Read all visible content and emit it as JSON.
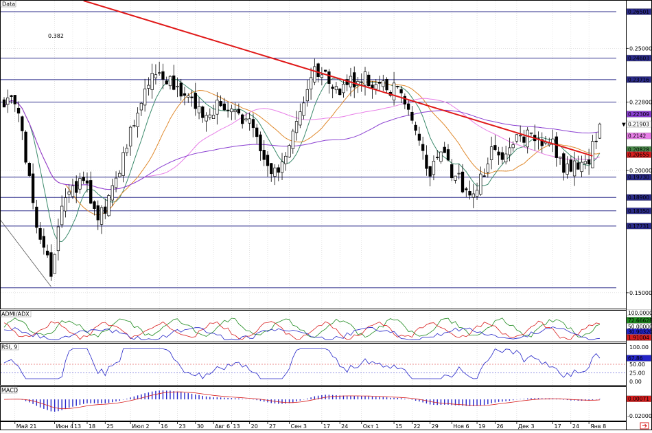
{
  "panes": {
    "main": {
      "label": "Data"
    },
    "adx": {
      "label": "ADMI/ADX"
    },
    "rsi": {
      "label": "RSI, 9"
    },
    "macd": {
      "label": "MACD"
    }
  },
  "chart_data": {
    "type": "candlestick",
    "price_axis": {
      "ylim": [
        0.1435,
        0.2695
      ],
      "ticks": [
        {
          "v": 0.25,
          "t": "0.25000"
        },
        {
          "v": 0.228,
          "t": "0.22800"
        },
        {
          "v": 0.2,
          "t": "0.20000"
        },
        {
          "v": 0.15,
          "t": "0.15000"
        }
      ]
    },
    "fib_label": "0.382",
    "levels": [
      {
        "v": 0.265,
        "t": "0.26501",
        "color": "#2b2b8a"
      },
      {
        "v": 0.246,
        "t": "0.24603",
        "color": "#2b2b8a"
      },
      {
        "v": 0.2372,
        "t": "0.23716",
        "color": "#2b2b8a"
      },
      {
        "v": 0.1973,
        "t": "0.19730",
        "color": "#2b2b8a"
      },
      {
        "v": 0.189,
        "t": "0.18900",
        "color": "#2b2b8a"
      },
      {
        "v": 0.1835,
        "t": "0.18350",
        "color": "#2b2b8a"
      },
      {
        "v": 0.1773,
        "t": "0.17731",
        "color": "#2b2b8a"
      }
    ],
    "line_levels": [
      0.228,
      0.152
    ],
    "price_tags": [
      {
        "v": 0.2231,
        "t": "0.22309",
        "color": "#8a3fd1"
      },
      {
        "v": 0.219,
        "t": "0.21903",
        "color": "#ffffff",
        "text_color": "#000000"
      },
      {
        "v": 0.2142,
        "t": "0.2142",
        "color": "#e87fe8"
      },
      {
        "v": 0.2086,
        "t": "0.20828",
        "color": "#4a8a4a"
      },
      {
        "v": 0.2065,
        "t": "0.20655",
        "color": "#d81e1e"
      }
    ],
    "x_labels": [
      {
        "i": 3,
        "t": "Май 21"
      },
      {
        "i": 14,
        "t": "Июн 4"
      },
      {
        "i": 19,
        "t": "13"
      },
      {
        "i": 23,
        "t": "18"
      },
      {
        "i": 28,
        "t": "25"
      },
      {
        "i": 35,
        "t": "Июл 2"
      },
      {
        "i": 43,
        "t": "16"
      },
      {
        "i": 48,
        "t": "23"
      },
      {
        "i": 53,
        "t": "30"
      },
      {
        "i": 58,
        "t": "Авг 6"
      },
      {
        "i": 63,
        "t": "13"
      },
      {
        "i": 68,
        "t": "20"
      },
      {
        "i": 73,
        "t": "27"
      },
      {
        "i": 79,
        "t": "Сен 3"
      },
      {
        "i": 88,
        "t": "17"
      },
      {
        "i": 93,
        "t": "24"
      },
      {
        "i": 99,
        "t": "Окт 1"
      },
      {
        "i": 108,
        "t": "15"
      },
      {
        "i": 113,
        "t": "22"
      },
      {
        "i": 118,
        "t": "29"
      },
      {
        "i": 124,
        "t": "Ноя 6"
      },
      {
        "i": 131,
        "t": "19"
      },
      {
        "i": 136,
        "t": "26"
      },
      {
        "i": 142,
        "t": "Дек 3"
      },
      {
        "i": 152,
        "t": "17"
      },
      {
        "i": 157,
        "t": "24"
      },
      {
        "i": 162,
        "t": "Янв 8"
      }
    ],
    "close_keypoints": [
      [
        0,
        0.228
      ],
      [
        2,
        0.232
      ],
      [
        4,
        0.222
      ],
      [
        6,
        0.205
      ],
      [
        8,
        0.186
      ],
      [
        10,
        0.172
      ],
      [
        12,
        0.165
      ],
      [
        13,
        0.155
      ],
      [
        14,
        0.168
      ],
      [
        16,
        0.184
      ],
      [
        18,
        0.19
      ],
      [
        20,
        0.192
      ],
      [
        22,
        0.196
      ],
      [
        24,
        0.188
      ],
      [
        26,
        0.18
      ],
      [
        28,
        0.184
      ],
      [
        30,
        0.192
      ],
      [
        32,
        0.2
      ],
      [
        34,
        0.212
      ],
      [
        36,
        0.22
      ],
      [
        38,
        0.227
      ],
      [
        40,
        0.236
      ],
      [
        42,
        0.24
      ],
      [
        44,
        0.238
      ],
      [
        46,
        0.236
      ],
      [
        48,
        0.232
      ],
      [
        50,
        0.23
      ],
      [
        52,
        0.228
      ],
      [
        54,
        0.224
      ],
      [
        56,
        0.222
      ],
      [
        58,
        0.224
      ],
      [
        60,
        0.229
      ],
      [
        62,
        0.226
      ],
      [
        64,
        0.224
      ],
      [
        66,
        0.222
      ],
      [
        68,
        0.22
      ],
      [
        70,
        0.212
      ],
      [
        72,
        0.205
      ],
      [
        74,
        0.198
      ],
      [
        76,
        0.2
      ],
      [
        78,
        0.204
      ],
      [
        80,
        0.214
      ],
      [
        82,
        0.226
      ],
      [
        84,
        0.235
      ],
      [
        86,
        0.24
      ],
      [
        88,
        0.242
      ],
      [
        90,
        0.238
      ],
      [
        92,
        0.232
      ],
      [
        94,
        0.234
      ],
      [
        96,
        0.236
      ],
      [
        98,
        0.238
      ],
      [
        100,
        0.24
      ],
      [
        102,
        0.234
      ],
      [
        104,
        0.236
      ],
      [
        106,
        0.233
      ],
      [
        108,
        0.234
      ],
      [
        110,
        0.232
      ],
      [
        112,
        0.226
      ],
      [
        114,
        0.216
      ],
      [
        116,
        0.206
      ],
      [
        118,
        0.198
      ],
      [
        120,
        0.204
      ],
      [
        122,
        0.206
      ],
      [
        124,
        0.2
      ],
      [
        126,
        0.196
      ],
      [
        128,
        0.192
      ],
      [
        130,
        0.19
      ],
      [
        132,
        0.196
      ],
      [
        134,
        0.204
      ],
      [
        136,
        0.21
      ],
      [
        138,
        0.206
      ],
      [
        140,
        0.21
      ],
      [
        142,
        0.212
      ],
      [
        144,
        0.214
      ],
      [
        146,
        0.215
      ],
      [
        148,
        0.214
      ],
      [
        150,
        0.212
      ],
      [
        152,
        0.21
      ],
      [
        154,
        0.203
      ],
      [
        156,
        0.201
      ],
      [
        158,
        0.204
      ],
      [
        160,
        0.203
      ],
      [
        162,
        0.205
      ],
      [
        164,
        0.213
      ],
      [
        165,
        0.219
      ]
    ],
    "trendline": {
      "from": [
        22,
        0.2695
      ],
      "to": [
        163,
        0.206
      ],
      "color": "#e01818"
    },
    "wedge_line": {
      "from": [
        0,
        0.18
      ],
      "to": [
        13,
        0.1525
      ],
      "color": "#555555"
    },
    "indicators": {
      "adx": {
        "ylim": [
          0,
          100
        ],
        "tags": [
          {
            "v": 100,
            "t": "100.0000",
            "color": "#ffffff"
          },
          {
            "v": 72.67,
            "t": "72.66628",
            "color": "#1e8a1e"
          },
          {
            "v": 50,
            "t": "50.00000",
            "color": "#ffffff"
          },
          {
            "v": 30.9,
            "t": "30.90320",
            "color": "#2424c8"
          },
          {
            "v": 10,
            "t": "1.91004",
            "color": "#d81e1e"
          }
        ]
      },
      "rsi": {
        "ylim": [
          0,
          100
        ],
        "ticks": [
          {
            "v": 100,
            "t": "100.00"
          },
          {
            "v": 50,
            "t": "50.00"
          },
          {
            "v": 25,
            "t": "25.00"
          },
          {
            "v": 0,
            "t": "0.00"
          }
        ],
        "tag": {
          "v": 67.86,
          "t": "67.86",
          "color": "#2424c8"
        }
      },
      "macd": {
        "ylim": [
          -0.024,
          0.0125
        ],
        "ticks": [
          {
            "v": -0.02,
            "t": "-0.02000"
          }
        ],
        "tag": {
          "v": 0.0007,
          "t": "0.00071",
          "color": "#d81e1e"
        }
      }
    }
  }
}
